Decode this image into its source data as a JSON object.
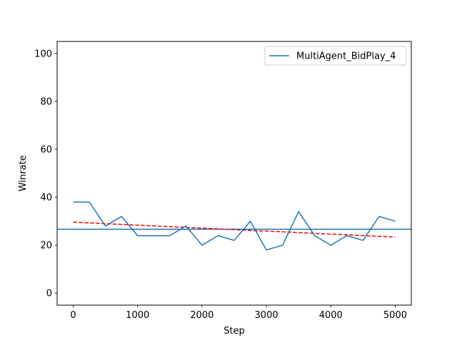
{
  "chart_data": {
    "type": "line",
    "title": "",
    "xlabel": "Step",
    "ylabel": "Winrate",
    "xlim": [
      -250,
      5250
    ],
    "ylim": [
      -5,
      105
    ],
    "xticks": [
      0,
      1000,
      2000,
      3000,
      4000,
      5000
    ],
    "yticks": [
      0,
      20,
      40,
      60,
      80,
      100
    ],
    "grid": false,
    "legend_position": "top-right",
    "series": [
      {
        "name": "MultiAgent_BidPlay_4",
        "color": "#1f77b4",
        "style": "solid",
        "x": [
          0,
          250,
          500,
          750,
          1000,
          1250,
          1500,
          1750,
          2000,
          2250,
          2500,
          2750,
          3000,
          3250,
          3500,
          3750,
          4000,
          4250,
          4500,
          4750,
          5000
        ],
        "y": [
          38,
          38,
          28,
          32,
          24,
          24,
          24,
          28,
          20,
          24,
          22,
          30,
          18,
          20,
          34,
          24,
          20,
          24,
          22,
          32,
          30
        ]
      }
    ],
    "reference_lines": [
      {
        "kind": "horizontal",
        "y": 26.67,
        "color": "#1f77b4",
        "style": "solid"
      },
      {
        "kind": "trend",
        "x": [
          0,
          5000
        ],
        "y": [
          29.6,
          23.4
        ],
        "color": "#ff0000",
        "style": "dashed"
      }
    ]
  }
}
